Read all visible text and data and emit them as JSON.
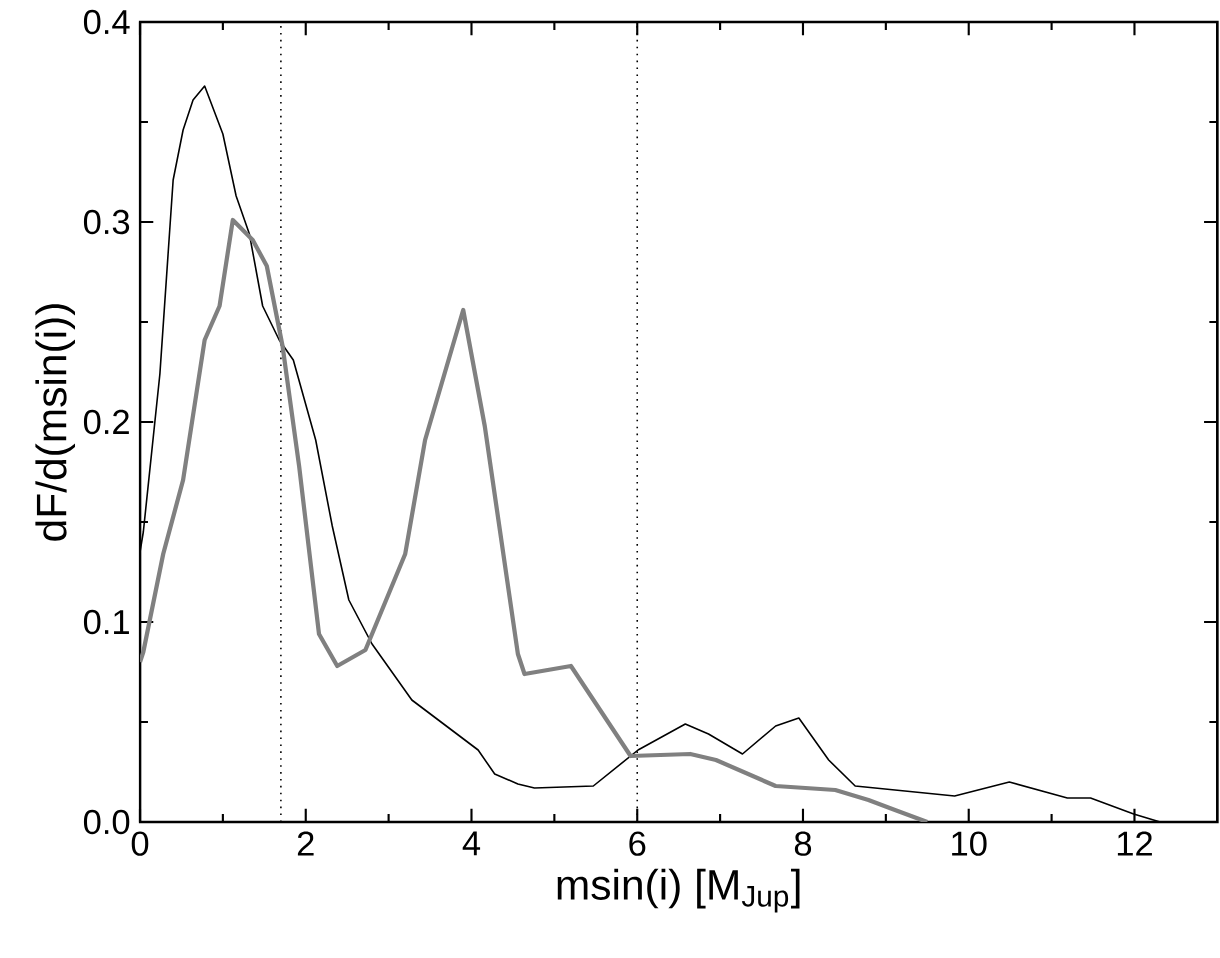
{
  "chart_data": {
    "type": "line",
    "xlabel": "msin(i) [M$_{Jup}$]",
    "ylabel": "dF/d(msin(i))",
    "xlim": [
      0,
      13
    ],
    "ylim": [
      0,
      0.4
    ],
    "xticks": [
      0,
      2,
      4,
      6,
      8,
      10,
      12
    ],
    "yticks": [
      {
        "value": 0,
        "label": "0.0"
      },
      {
        "value": 0.1,
        "label": "0.1"
      },
      {
        "value": 0.2,
        "label": "0.2"
      },
      {
        "value": 0.3,
        "label": "0.3"
      },
      {
        "value": 0.4,
        "label": "0.4"
      }
    ],
    "ref_lines": [
      {
        "axis": "x",
        "value": 1.7,
        "color": "#000000",
        "line_style": "dotted"
      },
      {
        "axis": "x",
        "value": 6,
        "color": "#000000",
        "line_style": "dotted"
      }
    ],
    "series": [
      {
        "color": "#000000",
        "x": [
          0,
          0.04,
          0.24,
          0.4,
          0.52,
          0.64,
          0.78,
          1.0,
          1.16,
          1.32,
          1.48,
          1.68,
          1.85,
          2.12,
          2.32,
          2.52,
          2.8,
          3.28,
          3.6,
          4.08,
          4.28,
          4.56,
          4.76,
          5.47,
          6.01,
          6.58,
          6.86,
          7.27,
          7.67,
          7.95,
          8.31,
          8.63,
          9.11,
          9.83,
          10.49,
          11.19,
          11.47,
          11.99,
          12.31
        ],
        "values": [
          0.135,
          0.145,
          0.224,
          0.321,
          0.346,
          0.361,
          0.368,
          0.344,
          0.313,
          0.294,
          0.258,
          0.241,
          0.231,
          0.191,
          0.148,
          0.111,
          0.089,
          0.061,
          0.051,
          0.036,
          0.024,
          0.019,
          0.017,
          0.018,
          0.036,
          0.049,
          0.044,
          0.034,
          0.048,
          0.052,
          0.031,
          0.018,
          0.016,
          0.013,
          0.02,
          0.012,
          0.012,
          0.004,
          0.0
        ]
      },
      {
        "color": "#808080",
        "x": [
          0,
          0.04,
          0.28,
          0.52,
          0.78,
          0.96,
          1.12,
          1.36,
          1.53,
          1.72,
          1.92,
          2.16,
          2.38,
          2.72,
          3.2,
          3.44,
          3.9,
          4.16,
          4.56,
          4.64,
          5.2,
          5.92,
          6.64,
          6.95,
          7.67,
          8.39,
          8.79,
          9.11,
          9.5
        ],
        "values": [
          0.08,
          0.085,
          0.134,
          0.171,
          0.241,
          0.258,
          0.301,
          0.291,
          0.278,
          0.238,
          0.178,
          0.094,
          0.078,
          0.086,
          0.134,
          0.191,
          0.256,
          0.198,
          0.084,
          0.074,
          0.078,
          0.033,
          0.034,
          0.031,
          0.018,
          0.016,
          0.011,
          0.006,
          0.0
        ]
      }
    ]
  }
}
